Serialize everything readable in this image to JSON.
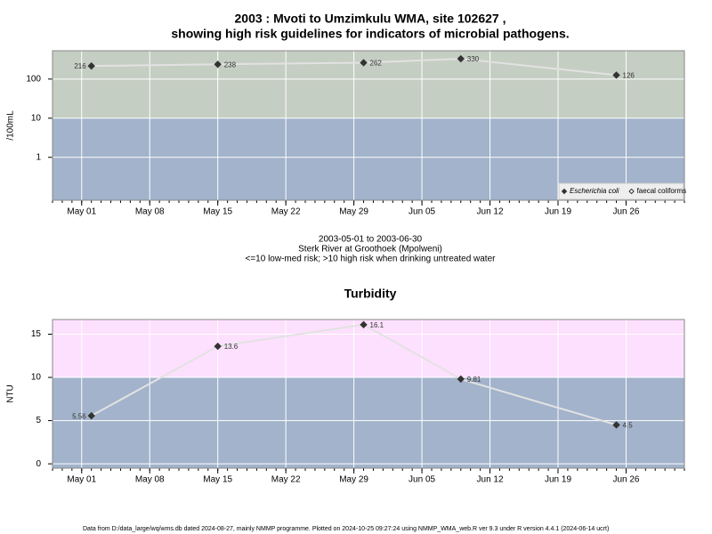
{
  "footer": "Data from D:/data_large/wq/wms.db dated 2024-08-27, mainly NMMP programme. Plotted on 2024-10-25 09:27:24 using NMMP_WMA_web.R ver 9.3 under R version 4.4.1 (2024-06-14 ucrt)",
  "chart_data": [
    {
      "type": "line",
      "title": "2003 : Mvoti to Umzimkulu WMA, site 102627 ,",
      "subtitle": "showing high risk guidelines for indicators of microbial pathogens.",
      "y_label": "/100mL",
      "x": [
        "2003-05-02",
        "2003-05-15",
        "2003-05-30",
        "2003-06-09",
        "2003-06-25"
      ],
      "series": [
        {
          "name": "Escherichia coli",
          "color": "#333333",
          "marker": "filled",
          "values": [
            216,
            238,
            262,
            330,
            126
          ]
        },
        {
          "name": "faecal coliforms",
          "color": "#333333",
          "marker": "open",
          "values": [
            null,
            null,
            null,
            null,
            null
          ]
        }
      ],
      "line_color": "#e2e2e2",
      "log_y": true,
      "ylim": [
        0.08,
        530
      ],
      "yticks": [
        1,
        10,
        100
      ],
      "xlim": [
        "2003-04-28",
        "2003-07-02"
      ],
      "xticks": [
        {
          "value": "2003-05-01",
          "label": "May 01"
        },
        {
          "value": "2003-05-08",
          "label": "May 08"
        },
        {
          "value": "2003-05-15",
          "label": "May 15"
        },
        {
          "value": "2003-05-22",
          "label": "May 22"
        },
        {
          "value": "2003-05-29",
          "label": "May 29"
        },
        {
          "value": "2003-06-05",
          "label": "Jun 05"
        },
        {
          "value": "2003-06-12",
          "label": "Jun 12"
        },
        {
          "value": "2003-06-19",
          "label": "Jun 19"
        },
        {
          "value": "2003-06-26",
          "label": "Jun 26"
        }
      ],
      "threshold": 10,
      "band_colors": {
        "above": "#c5cec2",
        "below": "#a2b3cb"
      },
      "grid": true,
      "legend": "bottom-right",
      "notes": [
        "2003-05-01 to 2003-06-30",
        "Sterk River at Groothoek (Mpolweni)",
        "<=10 low-med risk; >10 high risk when drinking untreated water"
      ]
    },
    {
      "type": "line",
      "title": "Turbidity",
      "y_label": "NTU",
      "x": [
        "2003-05-02",
        "2003-05-15",
        "2003-05-30",
        "2003-06-09",
        "2003-06-25"
      ],
      "series": [
        {
          "color": "#333333",
          "marker": "filled",
          "values": [
            5.56,
            13.6,
            16.1,
            9.81,
            4.5
          ]
        }
      ],
      "line_color": "#e2e2e2",
      "log_y": false,
      "ylim": [
        -0.5,
        16.7
      ],
      "yticks": [
        0,
        5,
        10,
        15
      ],
      "xlim": [
        "2003-04-28",
        "2003-07-02"
      ],
      "xticks": [
        {
          "value": "2003-05-01",
          "label": "May 01"
        },
        {
          "value": "2003-05-08",
          "label": "May 08"
        },
        {
          "value": "2003-05-15",
          "label": "May 15"
        },
        {
          "value": "2003-05-22",
          "label": "May 22"
        },
        {
          "value": "2003-05-29",
          "label": "May 29"
        },
        {
          "value": "2003-06-05",
          "label": "Jun 05"
        },
        {
          "value": "2003-06-12",
          "label": "Jun 12"
        },
        {
          "value": "2003-06-19",
          "label": "Jun 19"
        },
        {
          "value": "2003-06-26",
          "label": "Jun 26"
        }
      ],
      "threshold": 10,
      "band_colors": {
        "above": "#fde0fd",
        "below": "#a2b3cb"
      },
      "grid": true
    }
  ]
}
